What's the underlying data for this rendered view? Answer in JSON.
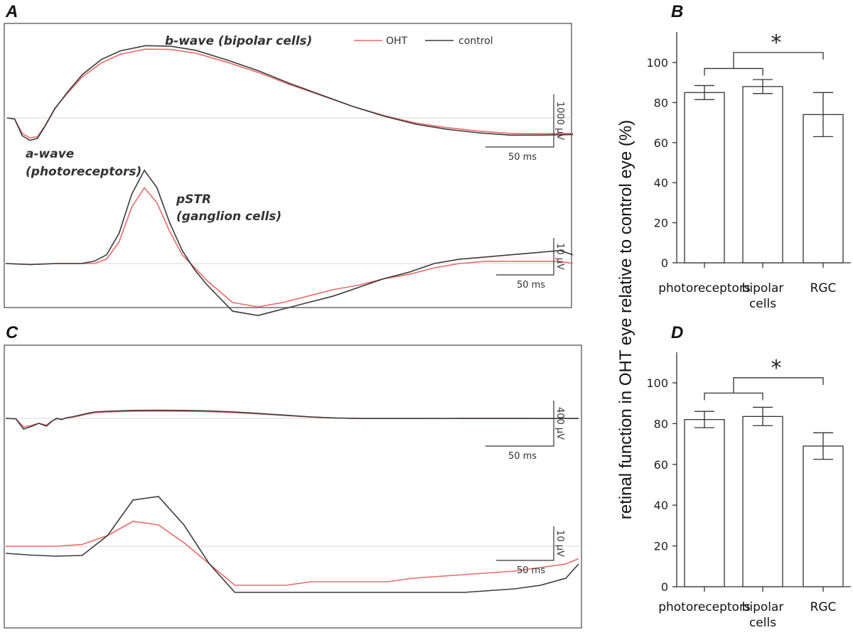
{
  "figure": {
    "shared_ylabel": "retinal function in OHT eye relative to control eye (%)"
  },
  "chart_data": [
    {
      "panel": "A",
      "type": "line",
      "legend": {
        "oht": "OHT",
        "control": "control"
      },
      "colors": {
        "oht": "#ea6a6a",
        "control": "#3a3a3a"
      },
      "subplots": [
        {
          "name": "erg",
          "annotations": [
            "b-wave (bipolar cells)",
            "a-wave",
            "(photoreceptors)"
          ],
          "scale_bar": {
            "y_label": "1000 µV",
            "x_label": "50 ms",
            "y_units": 1000,
            "x_units": 50
          },
          "y_range": [
            -400,
            1350
          ],
          "t_range": [
            0,
            450
          ],
          "series": [
            {
              "name": "control",
              "t": [
                0,
                6,
                12,
                18,
                24,
                30,
                38,
                48,
                60,
                75,
                90,
                110,
                130,
                150,
                175,
                200,
                225,
                250,
                275,
                300,
                325,
                350,
                375,
                400,
                425,
                450
              ],
              "v": [
                0,
                -20,
                -310,
                -390,
                -360,
                -150,
                160,
                450,
                760,
                1020,
                1170,
                1260,
                1250,
                1180,
                1010,
                820,
                600,
                400,
                200,
                30,
                -110,
                -200,
                -260,
                -300,
                -300,
                -290
              ]
            },
            {
              "name": "OHT",
              "t": [
                0,
                6,
                12,
                18,
                24,
                30,
                38,
                48,
                60,
                75,
                90,
                110,
                130,
                150,
                175,
                200,
                225,
                250,
                275,
                300,
                325,
                350,
                375,
                400,
                425,
                450
              ],
              "v": [
                0,
                -20,
                -270,
                -350,
                -330,
                -140,
                170,
                430,
                720,
                960,
                1110,
                1200,
                1195,
                1130,
                970,
                790,
                580,
                390,
                200,
                40,
                -90,
                -170,
                -230,
                -270,
                -275,
                -270
              ]
            }
          ]
        },
        {
          "name": "pstr",
          "annotations": [
            "pSTR",
            "(ganglion cells)"
          ],
          "scale_bar": {
            "y_label": "10 µV",
            "x_label": "50 ms",
            "y_units": 10,
            "x_units": 50
          },
          "y_range": [
            -25,
            50
          ],
          "t_range": [
            0,
            450
          ],
          "series": [
            {
              "name": "control",
              "t": [
                0,
                20,
                40,
                60,
                70,
                80,
                90,
                100,
                110,
                120,
                130,
                140,
                150,
                160,
                180,
                200,
                220,
                240,
                260,
                280,
                300,
                320,
                340,
                360,
                380,
                400,
                420,
                440,
                450
              ],
              "v": [
                0,
                -0.5,
                0,
                0,
                1,
                4,
                14,
                32,
                43,
                35,
                19,
                6,
                -3,
                -10,
                -22,
                -24,
                -21,
                -18,
                -15,
                -11,
                -7,
                -4,
                0,
                2,
                3,
                4,
                5,
                6,
                4
              ]
            },
            {
              "name": "OHT",
              "t": [
                0,
                20,
                40,
                60,
                70,
                80,
                90,
                100,
                110,
                120,
                130,
                140,
                150,
                160,
                180,
                200,
                220,
                240,
                260,
                280,
                300,
                320,
                340,
                360,
                380,
                400,
                420,
                440,
                450
              ],
              "v": [
                0,
                -0.5,
                0,
                0,
                0,
                2,
                10,
                26,
                35,
                28,
                15,
                4,
                -2,
                -8,
                -18,
                -20,
                -18,
                -15,
                -12,
                -10,
                -7,
                -5,
                -2,
                0,
                1,
                1,
                1,
                1,
                0
              ]
            }
          ]
        }
      ]
    },
    {
      "panel": "B",
      "type": "bar",
      "categories": [
        "photoreceptors",
        "bipolar|cells",
        "RGC"
      ],
      "values": [
        85,
        88,
        74
      ],
      "errors": [
        3.5,
        3.5,
        11
      ],
      "ylim": [
        0,
        115
      ],
      "yticks": [
        0,
        20,
        40,
        60,
        80,
        100
      ],
      "significance": "*"
    },
    {
      "panel": "C",
      "type": "line",
      "subplots": [
        {
          "name": "erg",
          "scale_bar": {
            "y_label": "400 µV",
            "x_label": "50 ms",
            "y_units": 400,
            "x_units": 50
          },
          "y_range": [
            -200,
            200
          ],
          "t_range": [
            0,
            450
          ],
          "series": [
            {
              "name": "control",
              "t": [
                0,
                8,
                14,
                20,
                26,
                32,
                36,
                40,
                44,
                48,
                52,
                58,
                64,
                70,
                80,
                100,
                120,
                140,
                160,
                180,
                200,
                220,
                240,
                260,
                280,
                300,
                330,
                360,
                400,
                450
              ],
              "v": [
                0,
                -6,
                -150,
                -115,
                -70,
                -110,
                -45,
                0,
                -15,
                10,
                20,
                45,
                70,
                90,
                100,
                112,
                114,
                112,
                105,
                90,
                68,
                44,
                20,
                5,
                -2,
                -2,
                -2,
                -1,
                -1,
                -2
              ]
            },
            {
              "name": "OHT",
              "t": [
                0,
                8,
                14,
                20,
                26,
                32,
                36,
                40,
                44,
                48,
                52,
                58,
                64,
                70,
                80,
                100,
                120,
                140,
                160,
                180,
                200,
                220,
                240,
                260,
                280,
                300,
                330,
                360,
                400,
                450
              ],
              "v": [
                0,
                -6,
                -120,
                -100,
                -70,
                -95,
                -40,
                -5,
                -15,
                5,
                15,
                35,
                60,
                80,
                90,
                100,
                102,
                100,
                94,
                80,
                62,
                40,
                18,
                4,
                -2,
                -2,
                -2,
                -1,
                -1,
                -2
              ]
            }
          ]
        },
        {
          "name": "pstr",
          "scale_bar": {
            "y_label": "10 µV",
            "x_label": "50 ms",
            "y_units": 10,
            "x_units": 50
          },
          "y_range": [
            -15,
            20
          ],
          "t_range": [
            0,
            450
          ],
          "series": [
            {
              "name": "control",
              "t": [
                0,
                20,
                40,
                60,
                80,
                100,
                120,
                140,
                160,
                180,
                200,
                220,
                240,
                260,
                280,
                300,
                320,
                340,
                360,
                380,
                400,
                420,
                440,
                450
              ],
              "v": [
                -2,
                -2.5,
                -2.8,
                -2.6,
                3,
                13,
                14,
                6,
                -5,
                -13,
                -13,
                -13,
                -13,
                -13,
                -13,
                -13,
                -13,
                -13,
                -13,
                -12.5,
                -12,
                -11,
                -9,
                -5
              ]
            },
            {
              "name": "OHT",
              "t": [
                0,
                20,
                40,
                60,
                80,
                100,
                120,
                140,
                160,
                180,
                200,
                220,
                240,
                260,
                280,
                300,
                320,
                340,
                360,
                380,
                400,
                420,
                440,
                450
              ],
              "v": [
                0,
                0,
                0,
                0.5,
                3,
                7,
                6,
                1,
                -5,
                -11,
                -11,
                -11,
                -10,
                -10,
                -10,
                -10,
                -9,
                -8.5,
                -8,
                -7.5,
                -7,
                -6,
                -5,
                -3.5
              ]
            }
          ]
        }
      ]
    },
    {
      "panel": "D",
      "type": "bar",
      "categories": [
        "photoreceptors",
        "bipolar|cells",
        "RGC"
      ],
      "values": [
        82,
        83.5,
        69
      ],
      "errors": [
        4,
        4.5,
        6.5
      ],
      "ylim": [
        0,
        115
      ],
      "yticks": [
        0,
        20,
        40,
        60,
        80,
        100
      ],
      "significance": "*"
    }
  ]
}
